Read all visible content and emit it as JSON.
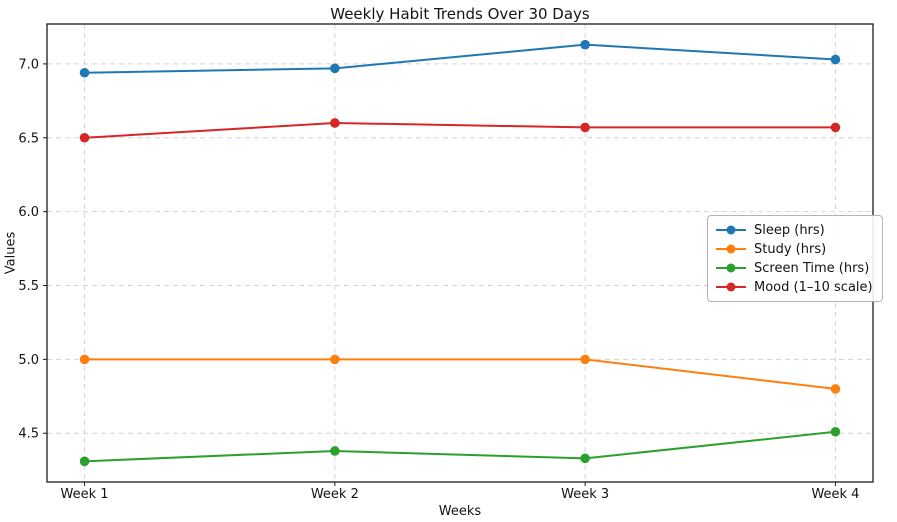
{
  "figure": {
    "background": "#ffffff",
    "text_color": "#141414",
    "spine_color": "#1a1a1a",
    "grid_color": "#d4d4d4"
  },
  "chart_data": {
    "type": "line",
    "title": "Weekly Habit Trends Over 30 Days",
    "xlabel": "Weeks",
    "ylabel": "Values",
    "categories": [
      "Week 1",
      "Week 2",
      "Week 3",
      "Week 4"
    ],
    "series": [
      {
        "name": "Sleep (hrs)",
        "color": "#1f77b4",
        "values": [
          6.94,
          6.97,
          7.13,
          7.03
        ]
      },
      {
        "name": "Study (hrs)",
        "color": "#ff7f0e",
        "values": [
          5.0,
          5.0,
          5.0,
          4.8
        ]
      },
      {
        "name": "Screen Time (hrs)",
        "color": "#2ca02c",
        "values": [
          4.31,
          4.38,
          4.33,
          4.51
        ]
      },
      {
        "name": "Mood (1–10 scale)",
        "color": "#d62728",
        "values": [
          6.5,
          6.6,
          6.57,
          6.57
        ]
      }
    ],
    "y_ticks": [
      4.5,
      5.0,
      5.5,
      6.0,
      6.5,
      7.0
    ],
    "ylim": [
      4.17,
      7.27
    ],
    "xlim": [
      -0.15,
      3.15
    ],
    "grid": true,
    "grid_style": "dashed",
    "legend_position": "center-right",
    "marker": "circle"
  }
}
